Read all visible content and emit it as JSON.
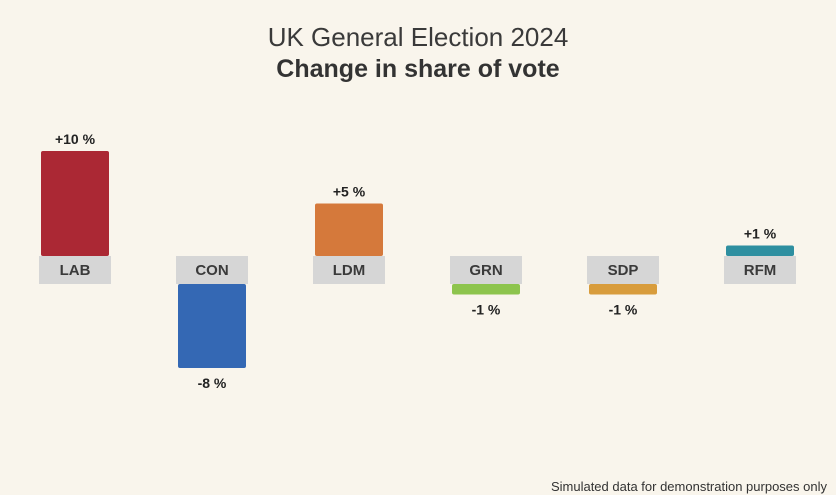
{
  "chart_data": {
    "type": "bar",
    "title": "UK General Election 2024",
    "subtitle": "Change in share of vote",
    "categories": [
      "LAB",
      "CON",
      "LDM",
      "GRN",
      "SDP",
      "RFM"
    ],
    "values": [
      10,
      -8,
      5,
      -1,
      -1,
      1
    ],
    "value_labels": [
      "+10 %",
      "-8 %",
      "+5 %",
      "-1 %",
      "-1 %",
      "+1 %"
    ],
    "colors": [
      "#ab2834",
      "#3468b4",
      "#d5793b",
      "#8dc44d",
      "#d89c3c",
      "#2e8fa0"
    ],
    "xlabel": "",
    "ylabel": "",
    "ylim": [
      -10,
      10
    ],
    "grid": false,
    "legend": "none"
  },
  "footnote": "Simulated data for demonstration purposes only"
}
